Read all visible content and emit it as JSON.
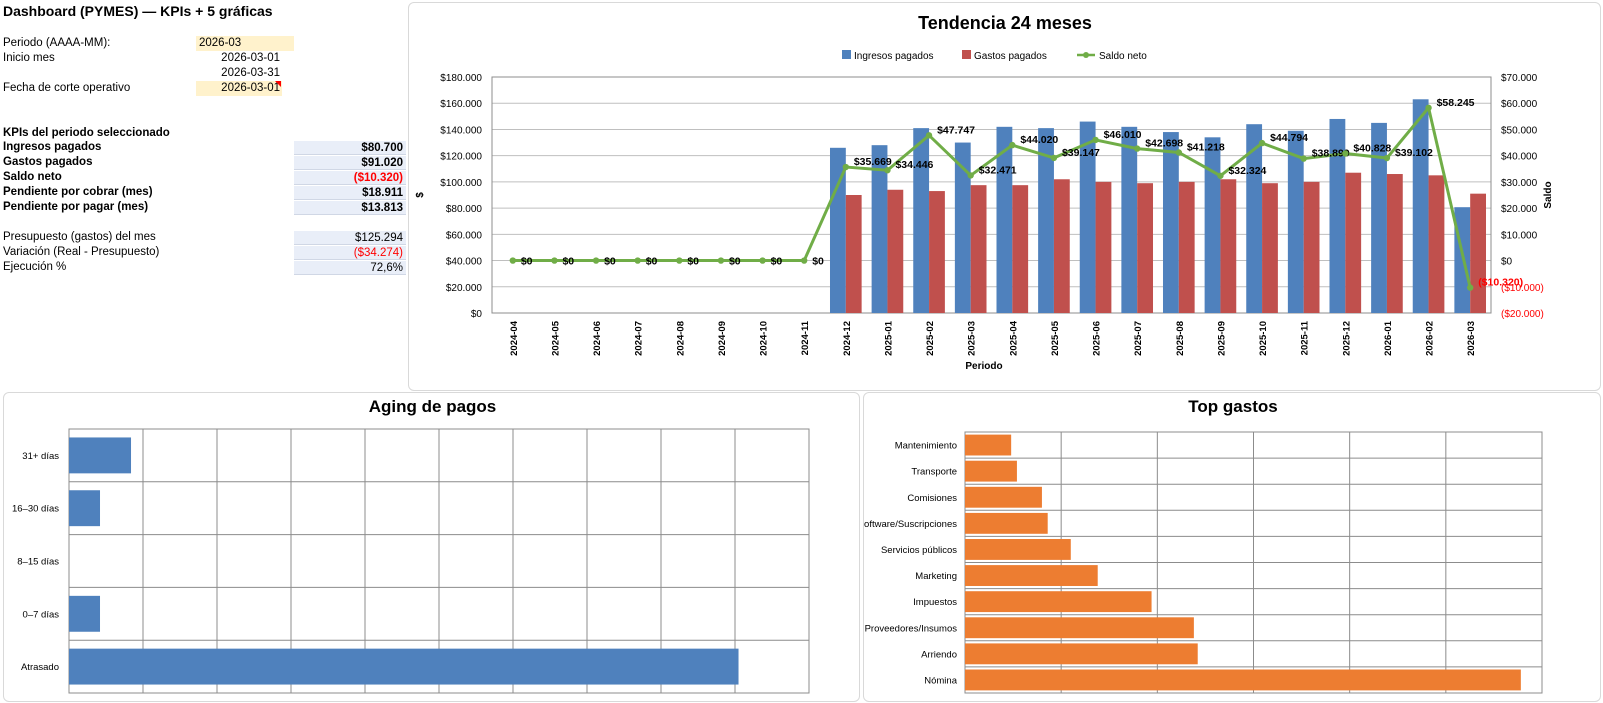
{
  "sheet": {
    "title": "Dashboard (PYMES) — KPIs + 5 gráficas",
    "periodo_label": "Periodo (AAAA-MM):",
    "periodo_value": "2026-03",
    "inicio_label": "Inicio mes",
    "inicio_value": "2026-03-01",
    "fin_value": "2026-03-31",
    "corte_label": "Fecha de corte operativo",
    "corte_value": "2026-03-01",
    "kpis_heading": "KPIs del periodo seleccionado",
    "kpis": [
      {
        "label": "Ingresos pagados",
        "value": "$80.700",
        "negative": false
      },
      {
        "label": "Gastos pagados",
        "value": "$91.020",
        "negative": false
      },
      {
        "label": "Saldo neto",
        "value": "($10.320)",
        "negative": true
      },
      {
        "label": "Pendiente por cobrar (mes)",
        "value": "$18.911",
        "negative": false
      },
      {
        "label": "Pendiente por pagar (mes)",
        "value": "$13.813",
        "negative": false
      }
    ],
    "budget": [
      {
        "label": "Presupuesto (gastos) del mes",
        "value": "$125.294",
        "negative": false
      },
      {
        "label": "Variación (Real - Presupuesto)",
        "value": "($34.274)",
        "negative": true
      },
      {
        "label": "Ejecución %",
        "value": "72,6%",
        "negative": false
      }
    ]
  },
  "chart_data": [
    {
      "type": "bar",
      "title": "Tendencia 24 meses",
      "xlabel": "Periodo",
      "ylabel": "$",
      "y2label": "Saldo",
      "ylim": [
        0,
        180000
      ],
      "y2lim": [
        -20000,
        70000
      ],
      "yticks": [
        "$0",
        "$20.000",
        "$40.000",
        "$60.000",
        "$80.000",
        "$100.000",
        "$120.000",
        "$140.000",
        "$160.000",
        "$180.000"
      ],
      "y2ticks": [
        "($20.000)",
        "($10.000)",
        "$0",
        "$10.000",
        "$20.000",
        "$30.000",
        "$40.000",
        "$50.000",
        "$60.000",
        "$70.000"
      ],
      "legend_position": "top",
      "categories": [
        "2024-04",
        "2024-05",
        "2024-06",
        "2024-07",
        "2024-08",
        "2024-09",
        "2024-10",
        "2024-11",
        "2024-12",
        "2025-01",
        "2025-02",
        "2025-03",
        "2025-04",
        "2025-05",
        "2025-06",
        "2025-07",
        "2025-08",
        "2025-09",
        "2025-10",
        "2025-11",
        "2025-12",
        "2026-01",
        "2026-02",
        "2026-03"
      ],
      "series": [
        {
          "name": "Ingresos pagados",
          "kind": "bar",
          "color": "#4f81bd",
          "values": [
            0,
            0,
            0,
            0,
            0,
            0,
            0,
            0,
            126000,
            128000,
            141000,
            130000,
            142000,
            141000,
            146000,
            142000,
            138000,
            134000,
            144000,
            139000,
            148000,
            145000,
            163000,
            80700
          ]
        },
        {
          "name": "Gastos pagados",
          "kind": "bar",
          "color": "#c0504d",
          "values": [
            0,
            0,
            0,
            0,
            0,
            0,
            0,
            0,
            90000,
            94000,
            93000,
            97500,
            97500,
            102000,
            100000,
            99000,
            100000,
            102000,
            99000,
            100000,
            107000,
            106000,
            105000,
            91020
          ]
        },
        {
          "name": "Saldo neto",
          "kind": "line",
          "axis": "secondary",
          "color": "#70ad47",
          "values": [
            0,
            0,
            0,
            0,
            0,
            0,
            0,
            0,
            35669,
            34446,
            47747,
            32471,
            44020,
            39147,
            46010,
            42698,
            41218,
            32324,
            44794,
            38899,
            40828,
            39102,
            58245,
            -10320
          ],
          "labels": [
            "$0",
            "$0",
            "$0",
            "$0",
            "$0",
            "$0",
            "$0",
            "$0",
            "$35.669",
            "$34.446",
            "$47.747",
            "$32.471",
            "$44.020",
            "$39.147",
            "$46.010",
            "$42.698",
            "$41.218",
            "$32.324",
            "$44.794",
            "$38.899",
            "$40.828",
            "$39.102",
            "$58.245",
            "($10.320)"
          ]
        }
      ]
    },
    {
      "type": "bar",
      "orientation": "horizontal",
      "title": "Aging de pagos",
      "categories": [
        "31+ días",
        "16–30 días",
        "8–15 días",
        "0–7 días",
        "Atrasado"
      ],
      "values": [
        880,
        440,
        0,
        440,
        9500
      ],
      "xlim": [
        0,
        10500
      ],
      "grid": true,
      "color": "#4f81bd"
    },
    {
      "type": "bar",
      "orientation": "horizontal",
      "title": "Top gastos",
      "categories": [
        "Mantenimiento",
        "Transporte",
        "Comisiones",
        "Software/Suscripciones",
        "Servicios públicos",
        "Marketing",
        "Impuestos",
        "Proveedores/Insumos",
        "Arriendo",
        "Nómina"
      ],
      "values": [
        2400,
        2700,
        4000,
        4300,
        5500,
        6900,
        9700,
        11900,
        12100,
        28900
      ],
      "xlim": [
        0,
        30000
      ],
      "grid": true,
      "color": "#ed7d31"
    }
  ]
}
